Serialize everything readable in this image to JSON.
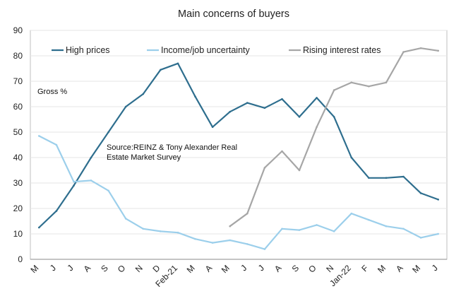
{
  "chart_data": {
    "type": "line",
    "title": "Main concerns of buyers",
    "unit_label": "Gross %",
    "source_note_line1": "Source:REINZ & Tony Alexander Real",
    "source_note_line2": "Estate Market Survey",
    "ylim": [
      0,
      90
    ],
    "y_ticks": [
      0,
      10,
      20,
      30,
      40,
      50,
      60,
      70,
      80,
      90
    ],
    "categories": [
      "M",
      "J",
      "J",
      "A",
      "S",
      "O",
      "N",
      "D",
      "Feb-21",
      "M",
      "A",
      "M",
      "J",
      "J",
      "A",
      "S",
      "O",
      "N",
      "Jan-22",
      "F",
      "M",
      "A",
      "M",
      "J"
    ],
    "grid": true,
    "legend_position": "top",
    "series": [
      {
        "name": "High prices",
        "color": "#2e6e8e",
        "values": [
          12.5,
          19,
          29,
          40,
          50,
          60,
          65,
          74.5,
          77,
          64,
          52,
          58,
          61.5,
          59.5,
          63,
          56,
          63.5,
          56,
          40,
          32,
          32,
          32.5,
          26,
          23.5
        ]
      },
      {
        "name": "Income/job uncertainty",
        "color": "#9ccfeb",
        "values": [
          48.5,
          45,
          30.5,
          31,
          27,
          16,
          12,
          11,
          10.5,
          8,
          6.5,
          7.5,
          6,
          4,
          12,
          11.5,
          13.5,
          11,
          18,
          15.5,
          13,
          12,
          8.5,
          10
        ]
      },
      {
        "name": "Rising interest rates",
        "color": "#a6a6a6",
        "values": [
          null,
          null,
          null,
          null,
          null,
          null,
          null,
          null,
          null,
          null,
          null,
          13,
          18,
          36,
          42.5,
          35,
          52,
          66.5,
          69.5,
          68,
          69.5,
          81.5,
          83,
          82
        ]
      }
    ]
  }
}
